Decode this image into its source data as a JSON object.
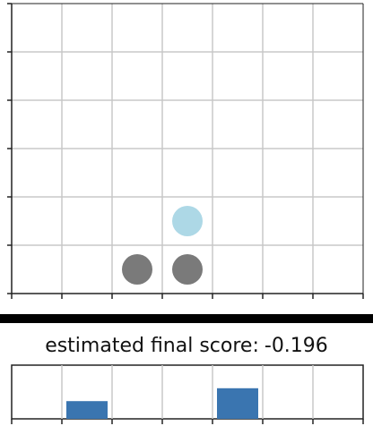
{
  "board": {
    "columns": 7,
    "rows": 6,
    "pieces": [
      {
        "col": 2,
        "row": 0,
        "player": "dark",
        "color": "#7a7a7a"
      },
      {
        "col": 3,
        "row": 0,
        "player": "dark",
        "color": "#7a7a7a"
      },
      {
        "col": 3,
        "row": 1,
        "player": "light",
        "color": "#add8e6"
      }
    ]
  },
  "score": {
    "label": "estimated final score:",
    "value": "-0.196"
  },
  "column_estimates": {
    "color": "#3a75b0",
    "values": [
      0,
      0.33,
      0,
      0,
      0.57,
      0,
      0
    ]
  }
}
